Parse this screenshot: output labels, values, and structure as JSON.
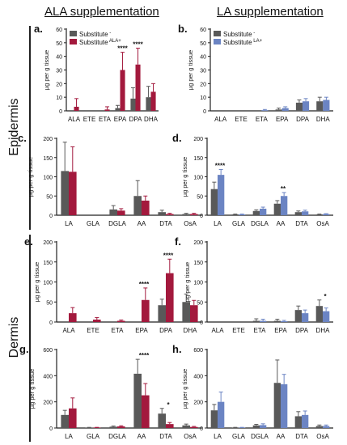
{
  "columns": {
    "left": "ALA supplementation",
    "right": "LA supplementation"
  },
  "rows": {
    "top": "Epidermis",
    "bottom": "Dermis"
  },
  "legends": {
    "ala": {
      "gray": "Substitute",
      "gray_sup": "-",
      "color": "Substitute",
      "color_sup": "ALA+"
    },
    "la": {
      "gray": "Substitute",
      "gray_sup": "-",
      "color": "Substitute",
      "color_sup": "LA+"
    }
  },
  "colors": {
    "gray": "#595959",
    "ala": "#a3193d",
    "la": "#6b84c3"
  },
  "chart_data": [
    {
      "panel": "a",
      "type": "bar",
      "ylabel": "µg per g tissue",
      "ylim": [
        0,
        60
      ],
      "yticks": [
        0,
        10,
        20,
        30,
        40,
        50,
        60
      ],
      "categories": [
        "ALA",
        "ETE",
        "ETA",
        "EPA",
        "DPA",
        "DHA"
      ],
      "series": [
        {
          "name": "Substitute -",
          "values": [
            0,
            0,
            0,
            2,
            9,
            10
          ],
          "errors": [
            0,
            0,
            0,
            2,
            8,
            8
          ]
        },
        {
          "name": "Substitute ALA+",
          "values": [
            3,
            0,
            1,
            30,
            34,
            14
          ],
          "errors": [
            6,
            0,
            2,
            13,
            12,
            6
          ]
        }
      ],
      "annotations": [
        {
          "category": "EPA",
          "text": "****"
        },
        {
          "category": "DPA",
          "text": "****"
        }
      ]
    },
    {
      "panel": "b",
      "type": "bar",
      "ylabel": "µg per g tissue",
      "ylim": [
        0,
        60
      ],
      "yticks": [
        0,
        10,
        20,
        30,
        40,
        50,
        60
      ],
      "categories": [
        "ALA",
        "ETE",
        "ETA",
        "EPA",
        "DPA",
        "DHA"
      ],
      "series": [
        {
          "name": "Substitute -",
          "values": [
            0,
            0,
            0,
            1,
            6,
            7
          ],
          "errors": [
            0,
            0,
            0,
            1,
            2,
            3
          ]
        },
        {
          "name": "Substitute LA+",
          "values": [
            0,
            0,
            0.5,
            2,
            7,
            8
          ],
          "errors": [
            0,
            0,
            0.5,
            1,
            2,
            2
          ]
        }
      ],
      "annotations": []
    },
    {
      "panel": "c",
      "type": "bar",
      "ylabel": "µg per g tissue",
      "ylim": [
        0,
        200
      ],
      "yticks": [
        0,
        50,
        100,
        150,
        200
      ],
      "categories": [
        "LA",
        "GLA",
        "DGLA",
        "AA",
        "DTA",
        "OsA"
      ],
      "series": [
        {
          "name": "Substitute -",
          "values": [
            115,
            0,
            15,
            50,
            8,
            3
          ],
          "errors": [
            75,
            0,
            10,
            40,
            5,
            2
          ]
        },
        {
          "name": "Substitute ALA+",
          "values": [
            113,
            0,
            12,
            38,
            3,
            3
          ],
          "errors": [
            65,
            0,
            5,
            12,
            2,
            2
          ]
        }
      ],
      "annotations": []
    },
    {
      "panel": "d",
      "type": "bar",
      "ylabel": "µg per g tissue",
      "ylim": [
        0,
        200
      ],
      "yticks": [
        0,
        50,
        100,
        150,
        200
      ],
      "categories": [
        "LA",
        "GLA",
        "DGLA",
        "AA",
        "DTA",
        "OsA"
      ],
      "series": [
        {
          "name": "Substitute -",
          "values": [
            68,
            2,
            11,
            30,
            8,
            2
          ],
          "errors": [
            18,
            1,
            3,
            8,
            3,
            1
          ]
        },
        {
          "name": "Substitute LA+",
          "values": [
            105,
            2,
            17,
            50,
            10,
            3
          ],
          "errors": [
            14,
            1,
            4,
            9,
            3,
            1
          ]
        }
      ],
      "annotations": [
        {
          "category": "LA",
          "text": "****"
        },
        {
          "category": "AA",
          "text": "**"
        }
      ]
    },
    {
      "panel": "e",
      "type": "bar",
      "ylabel": "µg per g tissue",
      "ylim": [
        0,
        200
      ],
      "yticks": [
        0,
        50,
        100,
        150,
        200
      ],
      "categories": [
        "ALA",
        "ETE",
        "ETA",
        "EPA",
        "DPA",
        "DHA"
      ],
      "series": [
        {
          "name": "Substitute -",
          "values": [
            0,
            0,
            0,
            0,
            42,
            50
          ],
          "errors": [
            0,
            0,
            0,
            0,
            15,
            20
          ]
        },
        {
          "name": "Substitute ALA+",
          "values": [
            22,
            6,
            3,
            55,
            122,
            42
          ],
          "errors": [
            14,
            5,
            2,
            30,
            35,
            12
          ]
        }
      ],
      "annotations": [
        {
          "category": "EPA",
          "text": "****"
        },
        {
          "category": "DPA",
          "text": "****"
        }
      ]
    },
    {
      "panel": "f",
      "type": "bar",
      "ylabel": "µg per g tissue",
      "ylim": [
        0,
        200
      ],
      "yticks": [
        0,
        50,
        100,
        150,
        200
      ],
      "categories": [
        "ALA",
        "ETE",
        "ETA",
        "EPA",
        "DPA",
        "DHA"
      ],
      "series": [
        {
          "name": "Substitute -",
          "values": [
            0,
            0,
            3,
            3,
            30,
            40
          ],
          "errors": [
            0,
            0,
            5,
            4,
            10,
            15
          ]
        },
        {
          "name": "Substitute LA+",
          "values": [
            0,
            0,
            3,
            2,
            22,
            27
          ],
          "errors": [
            0,
            0,
            4,
            2,
            8,
            8
          ]
        }
      ],
      "annotations": [
        {
          "category": "DHA",
          "text": "*"
        }
      ]
    },
    {
      "panel": "g",
      "type": "bar",
      "ylabel": "µg per g tissue",
      "ylim": [
        0,
        600
      ],
      "yticks": [
        0,
        200,
        400,
        600
      ],
      "categories": [
        "LA",
        "GLA",
        "DGLA",
        "AA",
        "DTA",
        "OsA"
      ],
      "series": [
        {
          "name": "Substitute -",
          "values": [
            100,
            3,
            10,
            415,
            110,
            20
          ],
          "errors": [
            35,
            2,
            5,
            110,
            40,
            10
          ]
        },
        {
          "name": "Substitute ALA+",
          "values": [
            150,
            3,
            12,
            250,
            30,
            8
          ],
          "errors": [
            80,
            2,
            5,
            90,
            12,
            4
          ]
        }
      ],
      "annotations": [
        {
          "category": "AA",
          "text": "****"
        },
        {
          "category": "DTA",
          "text": "*"
        }
      ]
    },
    {
      "panel": "h",
      "type": "bar",
      "ylabel": "µg per g tissue",
      "ylim": [
        0,
        600
      ],
      "yticks": [
        0,
        200,
        400,
        600
      ],
      "categories": [
        "LA",
        "GLA",
        "DGLA",
        "AA",
        "DTA",
        "OsA"
      ],
      "series": [
        {
          "name": "Substitute -",
          "values": [
            135,
            3,
            20,
            345,
            90,
            15
          ],
          "errors": [
            45,
            2,
            8,
            175,
            35,
            8
          ]
        },
        {
          "name": "Substitute LA+",
          "values": [
            200,
            3,
            22,
            335,
            100,
            15
          ],
          "errors": [
            75,
            2,
            10,
            75,
            30,
            8
          ]
        }
      ],
      "annotations": []
    }
  ]
}
